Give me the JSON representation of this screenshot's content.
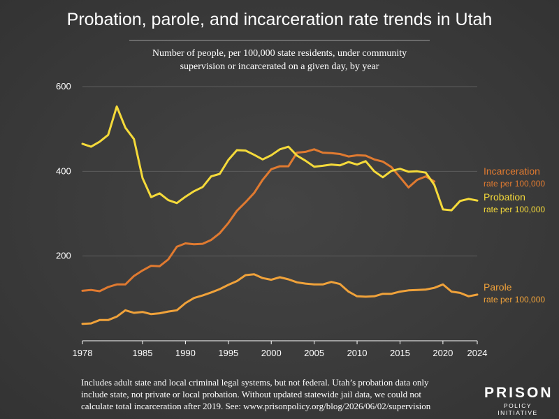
{
  "title": "Probation, parole, and incarceration rate trends in Utah",
  "subtitle_line1": "Number of people, per 100,000 state residents, under community",
  "subtitle_line2": "supervision or incarcerated on a given day, by year",
  "footnote_line1": "Includes adult state and local criminal legal systems, but not federal. Utah’s probation data only",
  "footnote_line2": "include state, not private or local probation. Without updated statewide jail data, we could not",
  "footnote_line3": "calculate total incarceration after 2019. See: www.prisonpolicy.org/blog/2026/06/02/supervision",
  "logo": {
    "main": "PRISON",
    "sub": "POLICY INITIATIVE"
  },
  "chart_data": {
    "type": "line",
    "xlim": [
      1978,
      2024
    ],
    "ylim": [
      0,
      600
    ],
    "x_ticks": [
      1978,
      1985,
      1990,
      1995,
      2000,
      2005,
      2010,
      2015,
      2020,
      2024
    ],
    "y_ticks": [
      200,
      400,
      600
    ],
    "grid": "horizontal",
    "legend_placement": "right, direct labels at line ends",
    "series": [
      {
        "name": "Incarceration",
        "sublabel": "rate per 100,000",
        "color": "#e07a30",
        "x": [
          1978,
          1979,
          1980,
          1981,
          1982,
          1983,
          1984,
          1985,
          1986,
          1987,
          1988,
          1989,
          1990,
          1991,
          1992,
          1993,
          1994,
          1995,
          1996,
          1997,
          1998,
          1999,
          2000,
          2001,
          2002,
          2003,
          2004,
          2005,
          2006,
          2007,
          2008,
          2009,
          2010,
          2011,
          2012,
          2013,
          2014,
          2015,
          2016,
          2017,
          2018,
          2019
        ],
        "values": [
          118,
          120,
          117,
          127,
          133,
          133,
          153,
          166,
          177,
          176,
          192,
          222,
          230,
          228,
          229,
          238,
          254,
          278,
          307,
          327,
          349,
          380,
          405,
          412,
          412,
          444,
          446,
          452,
          444,
          443,
          441,
          435,
          438,
          437,
          428,
          423,
          410,
          386,
          362,
          380,
          388,
          376
        ]
      },
      {
        "name": "Probation",
        "sublabel": "rate per 100,000",
        "color": "#f5da3a",
        "x": [
          1978,
          1979,
          1980,
          1981,
          1982,
          1983,
          1984,
          1985,
          1986,
          1987,
          1988,
          1989,
          1990,
          1991,
          1992,
          1993,
          1994,
          1995,
          1996,
          1997,
          1998,
          1999,
          2000,
          2001,
          2002,
          2003,
          2004,
          2005,
          2006,
          2007,
          2008,
          2009,
          2010,
          2011,
          2012,
          2013,
          2014,
          2015,
          2016,
          2017,
          2018,
          2019,
          2020,
          2021,
          2022,
          2023,
          2024
        ],
        "values": [
          465,
          458,
          470,
          486,
          553,
          503,
          476,
          384,
          339,
          348,
          332,
          325,
          340,
          353,
          363,
          388,
          394,
          427,
          450,
          449,
          439,
          428,
          438,
          452,
          458,
          437,
          425,
          411,
          413,
          416,
          414,
          422,
          416,
          424,
          400,
          386,
          401,
          406,
          399,
          400,
          397,
          368,
          310,
          308,
          330,
          335,
          331
        ]
      },
      {
        "name": "Parole",
        "sublabel": "rate per 100,000",
        "color": "#f0a23a",
        "x": [
          1978,
          1979,
          1980,
          1981,
          1982,
          1983,
          1984,
          1985,
          1986,
          1987,
          1988,
          1989,
          1990,
          1991,
          1992,
          1993,
          1994,
          1995,
          1996,
          1997,
          1998,
          1999,
          2000,
          2001,
          2002,
          2003,
          2004,
          2005,
          2006,
          2007,
          2008,
          2009,
          2010,
          2011,
          2012,
          2013,
          2014,
          2015,
          2016,
          2017,
          2018,
          2019,
          2020,
          2021,
          2022,
          2023,
          2024
        ],
        "values": [
          40,
          41,
          49,
          49,
          57,
          72,
          66,
          68,
          63,
          65,
          69,
          72,
          89,
          101,
          107,
          114,
          122,
          132,
          141,
          155,
          157,
          148,
          144,
          150,
          145,
          138,
          135,
          133,
          133,
          139,
          134,
          116,
          105,
          104,
          105,
          111,
          111,
          116,
          119,
          120,
          121,
          125,
          133,
          116,
          113,
          105,
          109
        ]
      }
    ]
  }
}
